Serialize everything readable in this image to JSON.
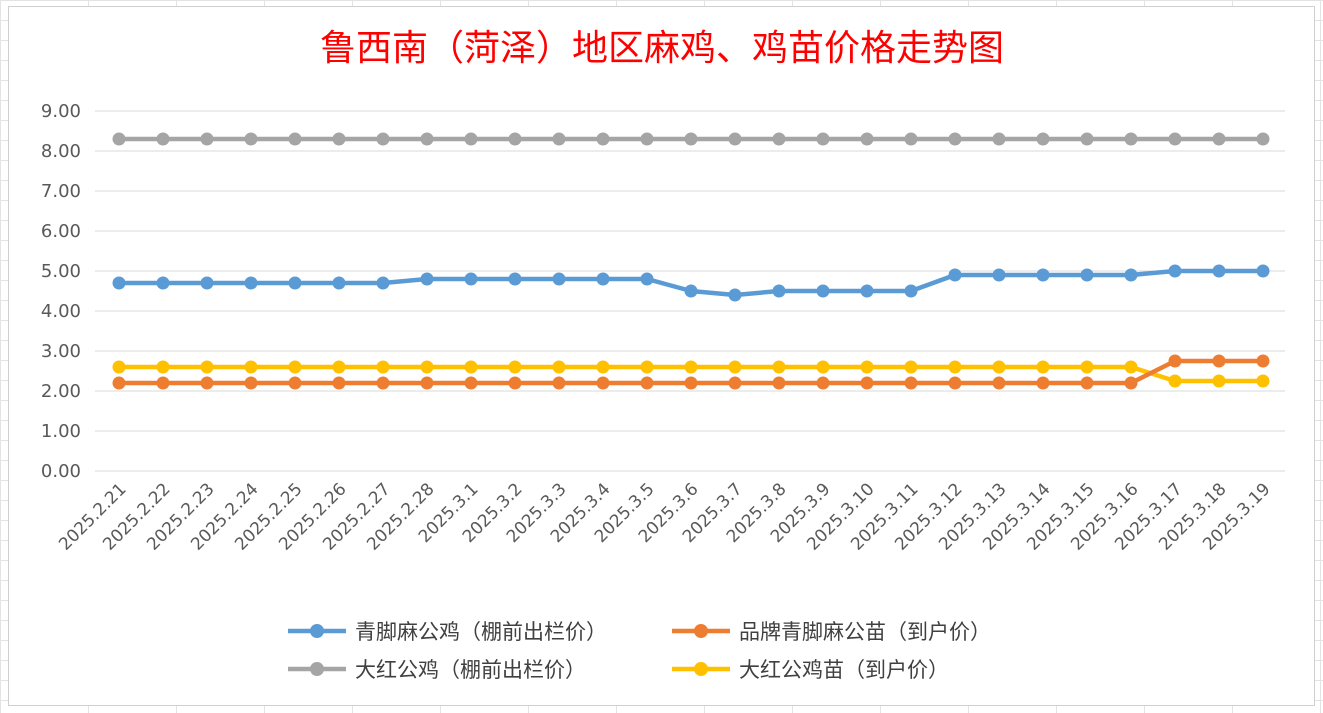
{
  "chart_data": {
    "type": "line",
    "title": "鲁西南（菏泽）地区麻鸡、鸡苗价格走势图",
    "xlabel": "",
    "ylabel": "",
    "ylim": [
      0,
      9
    ],
    "yticks": [
      "0.00",
      "1.00",
      "2.00",
      "3.00",
      "4.00",
      "5.00",
      "6.00",
      "7.00",
      "8.00",
      "9.00"
    ],
    "grid": "horizontal",
    "legend_position": "bottom",
    "categories": [
      "2025.2.21",
      "2025.2.22",
      "2025.2.23",
      "2025.2.24",
      "2025.2.25",
      "2025.2.26",
      "2025.2.27",
      "2025.2.28",
      "2025.3.1",
      "2025.3.2",
      "2025.3.3",
      "2025.3.4",
      "2025.3.5",
      "2025.3.6",
      "2025.3.7",
      "2025.3.8",
      "2025.3.9",
      "2025.3.10",
      "2025.3.11",
      "2025.3.12",
      "2025.3.13",
      "2025.3.14",
      "2025.3.15",
      "2025.3.16",
      "2025.3.17",
      "2025.3.18",
      "2025.3.19"
    ],
    "series": [
      {
        "name": "大红公鸡（棚前出栏价）",
        "color": "#a5a5a5",
        "values": [
          8.3,
          8.3,
          8.3,
          8.3,
          8.3,
          8.3,
          8.3,
          8.3,
          8.3,
          8.3,
          8.3,
          8.3,
          8.3,
          8.3,
          8.3,
          8.3,
          8.3,
          8.3,
          8.3,
          8.3,
          8.3,
          8.3,
          8.3,
          8.3,
          8.3,
          8.3,
          8.3
        ]
      },
      {
        "name": "青脚麻公鸡（棚前出栏价）",
        "color": "#5b9bd5",
        "values": [
          4.7,
          4.7,
          4.7,
          4.7,
          4.7,
          4.7,
          4.7,
          4.8,
          4.8,
          4.8,
          4.8,
          4.8,
          4.8,
          4.5,
          4.4,
          4.5,
          4.5,
          4.5,
          4.5,
          4.9,
          4.9,
          4.9,
          4.9,
          4.9,
          5.0,
          5.0,
          5.0
        ]
      },
      {
        "name": "大红公鸡苗（到户价）",
        "color": "#ffc000",
        "values": [
          2.6,
          2.6,
          2.6,
          2.6,
          2.6,
          2.6,
          2.6,
          2.6,
          2.6,
          2.6,
          2.6,
          2.6,
          2.6,
          2.6,
          2.6,
          2.6,
          2.6,
          2.6,
          2.6,
          2.6,
          2.6,
          2.6,
          2.6,
          2.6,
          2.25,
          2.25,
          2.25
        ]
      },
      {
        "name": "品牌青脚麻公苗（到户价）",
        "color": "#ed7d31",
        "values": [
          2.2,
          2.2,
          2.2,
          2.2,
          2.2,
          2.2,
          2.2,
          2.2,
          2.2,
          2.2,
          2.2,
          2.2,
          2.2,
          2.2,
          2.2,
          2.2,
          2.2,
          2.2,
          2.2,
          2.2,
          2.2,
          2.2,
          2.2,
          2.2,
          2.75,
          2.75,
          2.75
        ]
      }
    ],
    "legend": [
      {
        "name": "青脚麻公鸡（棚前出栏价）",
        "color": "#5b9bd5"
      },
      {
        "name": "品牌青脚麻公苗（到户价）",
        "color": "#ed7d31"
      },
      {
        "name": "大红公鸡（棚前出栏价）",
        "color": "#a5a5a5"
      },
      {
        "name": "大红公鸡苗（到户价）",
        "color": "#ffc000"
      }
    ]
  }
}
